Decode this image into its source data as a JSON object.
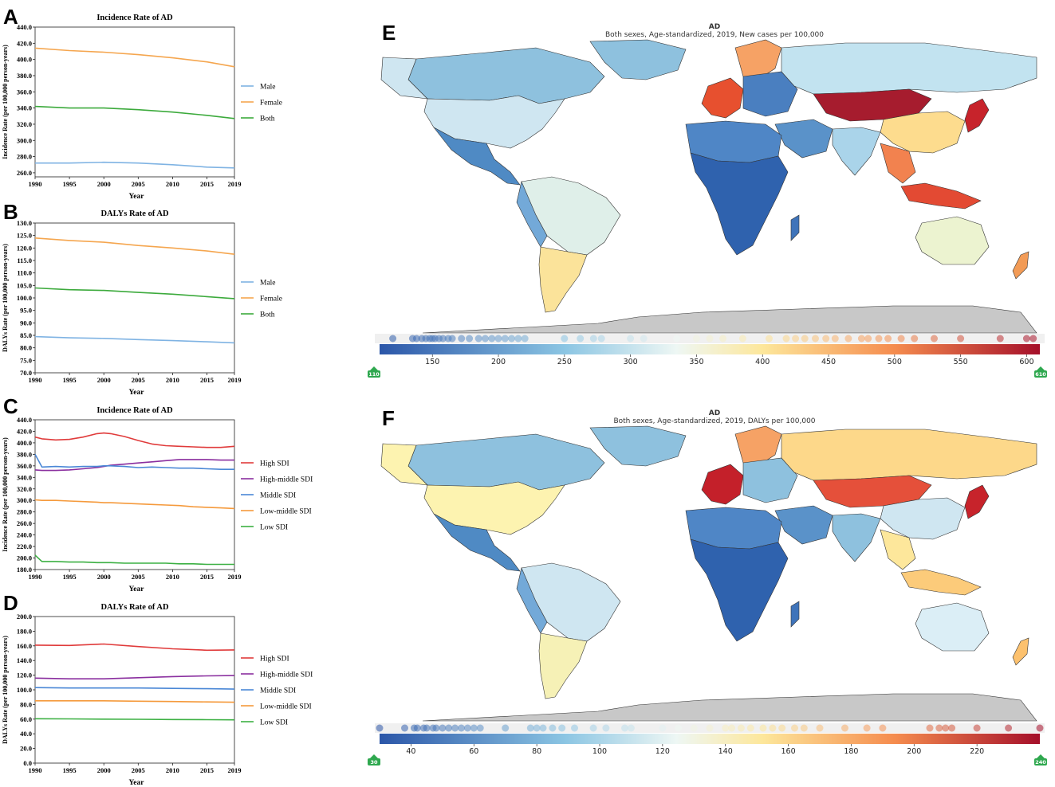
{
  "panel_letters": {
    "a": "A",
    "b": "B",
    "c": "C",
    "d": "D",
    "e": "E",
    "f": "F"
  },
  "palette": {
    "male": "#7fb3e3",
    "female": "#f5a64f",
    "both": "#3caa3c",
    "high_sdi": "#e03b3b",
    "high_middle_sdi": "#8a2f9f",
    "middle_sdi": "#4a87d6",
    "low_middle_sdi": "#f59a3c",
    "low_sdi": "#3cb043",
    "land_grey": "#c8c8c8",
    "badge": "#2fa84f"
  },
  "chart_data": [
    {
      "id": "A",
      "type": "line",
      "title": "Incidence Rate of AD",
      "xlabel": "Year",
      "ylabel": "Incidence Rate (per 100,000 person-years)",
      "ylim": [
        255,
        440
      ],
      "yticks": [
        260,
        280,
        300,
        320,
        340,
        360,
        380,
        400,
        420,
        440
      ],
      "ytick_labels": [
        "260.0",
        "280.0",
        "300.0",
        "320.0",
        "340.0",
        "360.0",
        "380.0",
        "400.0",
        "420.0",
        "440.0"
      ],
      "xlim": [
        1990,
        2019
      ],
      "xticks": [
        1990,
        1995,
        2000,
        2005,
        2010,
        2015,
        2019
      ],
      "xtick_labels": [
        "1990",
        "1995",
        "2000",
        "2005",
        "2010",
        "2015",
        "2019"
      ],
      "x": [
        1990,
        1995,
        2000,
        2005,
        2010,
        2015,
        2019
      ],
      "series": [
        {
          "name": "Male",
          "color_key": "male",
          "values": [
            272,
            272,
            273,
            272,
            270,
            267,
            266
          ]
        },
        {
          "name": "Female",
          "color_key": "female",
          "values": [
            414,
            411,
            409,
            406,
            402,
            397,
            391
          ]
        },
        {
          "name": "Both",
          "color_key": "both",
          "values": [
            342,
            340,
            340,
            338,
            335,
            331,
            327
          ]
        }
      ]
    },
    {
      "id": "B",
      "type": "line",
      "title": "DALYs Rate of AD",
      "xlabel": "Year",
      "ylabel": "DALYs Rate (per 100,000 person-years)",
      "ylim": [
        70,
        130
      ],
      "yticks": [
        70,
        75,
        80,
        85,
        90,
        95,
        100,
        105,
        110,
        115,
        120,
        125,
        130
      ],
      "ytick_labels": [
        "70.0",
        "75.0",
        "80.0",
        "85.0",
        "90.0",
        "95.0",
        "100.0",
        "105.0",
        "110.0",
        "115.0",
        "120.0",
        "125.0",
        "130.0"
      ],
      "xlim": [
        1990,
        2019
      ],
      "xticks": [
        1990,
        1995,
        2000,
        2005,
        2010,
        2015,
        2019
      ],
      "xtick_labels": [
        "1990",
        "1995",
        "2000",
        "2005",
        "2010",
        "2015",
        "2019"
      ],
      "x": [
        1990,
        1995,
        2000,
        2005,
        2010,
        2015,
        2019
      ],
      "series": [
        {
          "name": "Male",
          "color_key": "male",
          "values": [
            84.5,
            84.0,
            83.8,
            83.3,
            82.9,
            82.4,
            82.0
          ]
        },
        {
          "name": "Female",
          "color_key": "female",
          "values": [
            124,
            123,
            122.3,
            121,
            120,
            118.8,
            117.5
          ]
        },
        {
          "name": "Both",
          "color_key": "both",
          "values": [
            104,
            103.3,
            103,
            102.2,
            101.5,
            100.5,
            99.7
          ]
        }
      ]
    },
    {
      "id": "C",
      "type": "line",
      "title": "Incidence Rate of AD",
      "xlabel": "Year",
      "ylabel": "Incidence Rate (per 100,000 person-years)",
      "ylim": [
        180,
        440
      ],
      "yticks": [
        180,
        200,
        220,
        240,
        260,
        280,
        300,
        320,
        340,
        360,
        380,
        400,
        420,
        440
      ],
      "ytick_labels": [
        "180.0",
        "200.0",
        "220.0",
        "240.0",
        "260.0",
        "280.0",
        "300.0",
        "320.0",
        "340.0",
        "360.0",
        "380.0",
        "400.0",
        "420.0",
        "440.0"
      ],
      "xlim": [
        1990,
        2019
      ],
      "xticks": [
        1990,
        1995,
        2000,
        2005,
        2010,
        2015,
        2019
      ],
      "xtick_labels": [
        "1990",
        "1995",
        "2000",
        "2005",
        "2010",
        "2015",
        "2019"
      ],
      "x": [
        1990,
        1991,
        1993,
        1995,
        1997,
        1999,
        2000,
        2001,
        2003,
        2005,
        2007,
        2009,
        2011,
        2013,
        2015,
        2017,
        2019
      ],
      "series": [
        {
          "name": "High SDI",
          "color_key": "high_sdi",
          "values": [
            410,
            407,
            405,
            406,
            410,
            416,
            417,
            416,
            411,
            404,
            398,
            395,
            394,
            393,
            392,
            392,
            394
          ]
        },
        {
          "name": "High-middle SDI",
          "color_key": "high_middle_sdi",
          "values": [
            353,
            352,
            352,
            353,
            355,
            357,
            359,
            361,
            363,
            365,
            367,
            369,
            371,
            371,
            371,
            370,
            370
          ]
        },
        {
          "name": "Middle SDI",
          "color_key": "middle_sdi",
          "values": [
            380,
            358,
            359,
            358,
            359,
            359,
            360,
            360,
            359,
            357,
            358,
            357,
            356,
            356,
            355,
            354,
            354
          ]
        },
        {
          "name": "Low-middle SDI",
          "color_key": "low_middle_sdi",
          "values": [
            301,
            300,
            300,
            299,
            298,
            297,
            296,
            296,
            295,
            294,
            293,
            292,
            291,
            289,
            288,
            287,
            286
          ]
        },
        {
          "name": "Low SDI",
          "color_key": "low_sdi",
          "values": [
            205,
            194,
            194,
            193,
            193,
            192,
            192,
            192,
            191,
            191,
            191,
            191,
            190,
            190,
            189,
            189,
            189
          ]
        }
      ]
    },
    {
      "id": "D",
      "type": "line",
      "title": "DALYs Rate of AD",
      "xlabel": "Year",
      "ylabel": "DALYs Rate (per 100,000 person-years)",
      "ylim": [
        0,
        200
      ],
      "yticks": [
        0,
        20,
        40,
        60,
        80,
        100,
        120,
        140,
        160,
        180,
        200
      ],
      "ytick_labels": [
        "0.0",
        "20.0",
        "40.0",
        "60.0",
        "80.0",
        "100.0",
        "120.0",
        "140.0",
        "160.0",
        "180.0",
        "200.0"
      ],
      "xlim": [
        1990,
        2019
      ],
      "xticks": [
        1990,
        1995,
        2000,
        2005,
        2010,
        2015,
        2019
      ],
      "xtick_labels": [
        "1990",
        "1995",
        "2000",
        "2005",
        "2010",
        "2015",
        "2019"
      ],
      "x": [
        1990,
        1995,
        2000,
        2005,
        2010,
        2015,
        2019
      ],
      "series": [
        {
          "name": "High SDI",
          "color_key": "high_sdi",
          "values": [
            161,
            160.5,
            162.5,
            159,
            156,
            154,
            154.5
          ]
        },
        {
          "name": "High-middle SDI",
          "color_key": "high_middle_sdi",
          "values": [
            116,
            115,
            115,
            116.5,
            118,
            119,
            119.5
          ]
        },
        {
          "name": "Middle SDI",
          "color_key": "middle_sdi",
          "values": [
            103,
            102.5,
            102.5,
            102.5,
            102,
            101.5,
            101
          ]
        },
        {
          "name": "Low-middle SDI",
          "color_key": "low_middle_sdi",
          "values": [
            85,
            85,
            85,
            84.5,
            84,
            83.5,
            83
          ]
        },
        {
          "name": "Low SDI",
          "color_key": "low_sdi",
          "values": [
            60.5,
            60.3,
            60,
            59.8,
            59.5,
            59.2,
            59
          ]
        }
      ]
    },
    {
      "id": "E",
      "type": "choropleth",
      "title": "AD",
      "subtitle": "Both sexes, Age-standardized, 2019, New cases per 100,000",
      "colorbar_ticks": [
        "150",
        "200",
        "250",
        "300",
        "350",
        "400",
        "450",
        "500",
        "550",
        "600"
      ],
      "colorbar_tick_values": [
        150,
        200,
        250,
        300,
        350,
        400,
        450,
        500,
        550,
        600
      ],
      "range": [
        110,
        610
      ],
      "min_label": "110",
      "max_label": "610",
      "dot_values": [
        120,
        135,
        138,
        142,
        145,
        148,
        150,
        152,
        155,
        158,
        162,
        165,
        172,
        178,
        185,
        190,
        195,
        200,
        205,
        210,
        215,
        220,
        250,
        262,
        272,
        278,
        300,
        310,
        335,
        350,
        360,
        370,
        385,
        405,
        418,
        425,
        432,
        440,
        448,
        455,
        465,
        475,
        480,
        488,
        495,
        505,
        515,
        530,
        550,
        580,
        600,
        605
      ]
    },
    {
      "id": "F",
      "type": "choropleth",
      "title": "AD",
      "subtitle": "Both sexes, Age-standardized, 2019, DALYs per 100,000",
      "colorbar_ticks": [
        "40",
        "60",
        "80",
        "100",
        "120",
        "140",
        "160",
        "180",
        "200",
        "220"
      ],
      "colorbar_tick_values": [
        40,
        60,
        80,
        100,
        120,
        140,
        160,
        180,
        200,
        220
      ],
      "range": [
        30,
        240
      ],
      "min_label": "30",
      "max_label": "240",
      "dot_values": [
        30,
        38,
        41,
        42,
        44,
        45,
        47,
        48,
        50,
        52,
        54,
        56,
        58,
        60,
        62,
        70,
        78,
        80,
        82,
        85,
        88,
        92,
        98,
        102,
        108,
        110,
        120,
        125,
        130,
        135,
        140,
        142,
        145,
        148,
        152,
        155,
        158,
        162,
        165,
        170,
        178,
        185,
        190,
        205,
        208,
        210,
        212,
        220,
        230,
        240
      ]
    }
  ]
}
